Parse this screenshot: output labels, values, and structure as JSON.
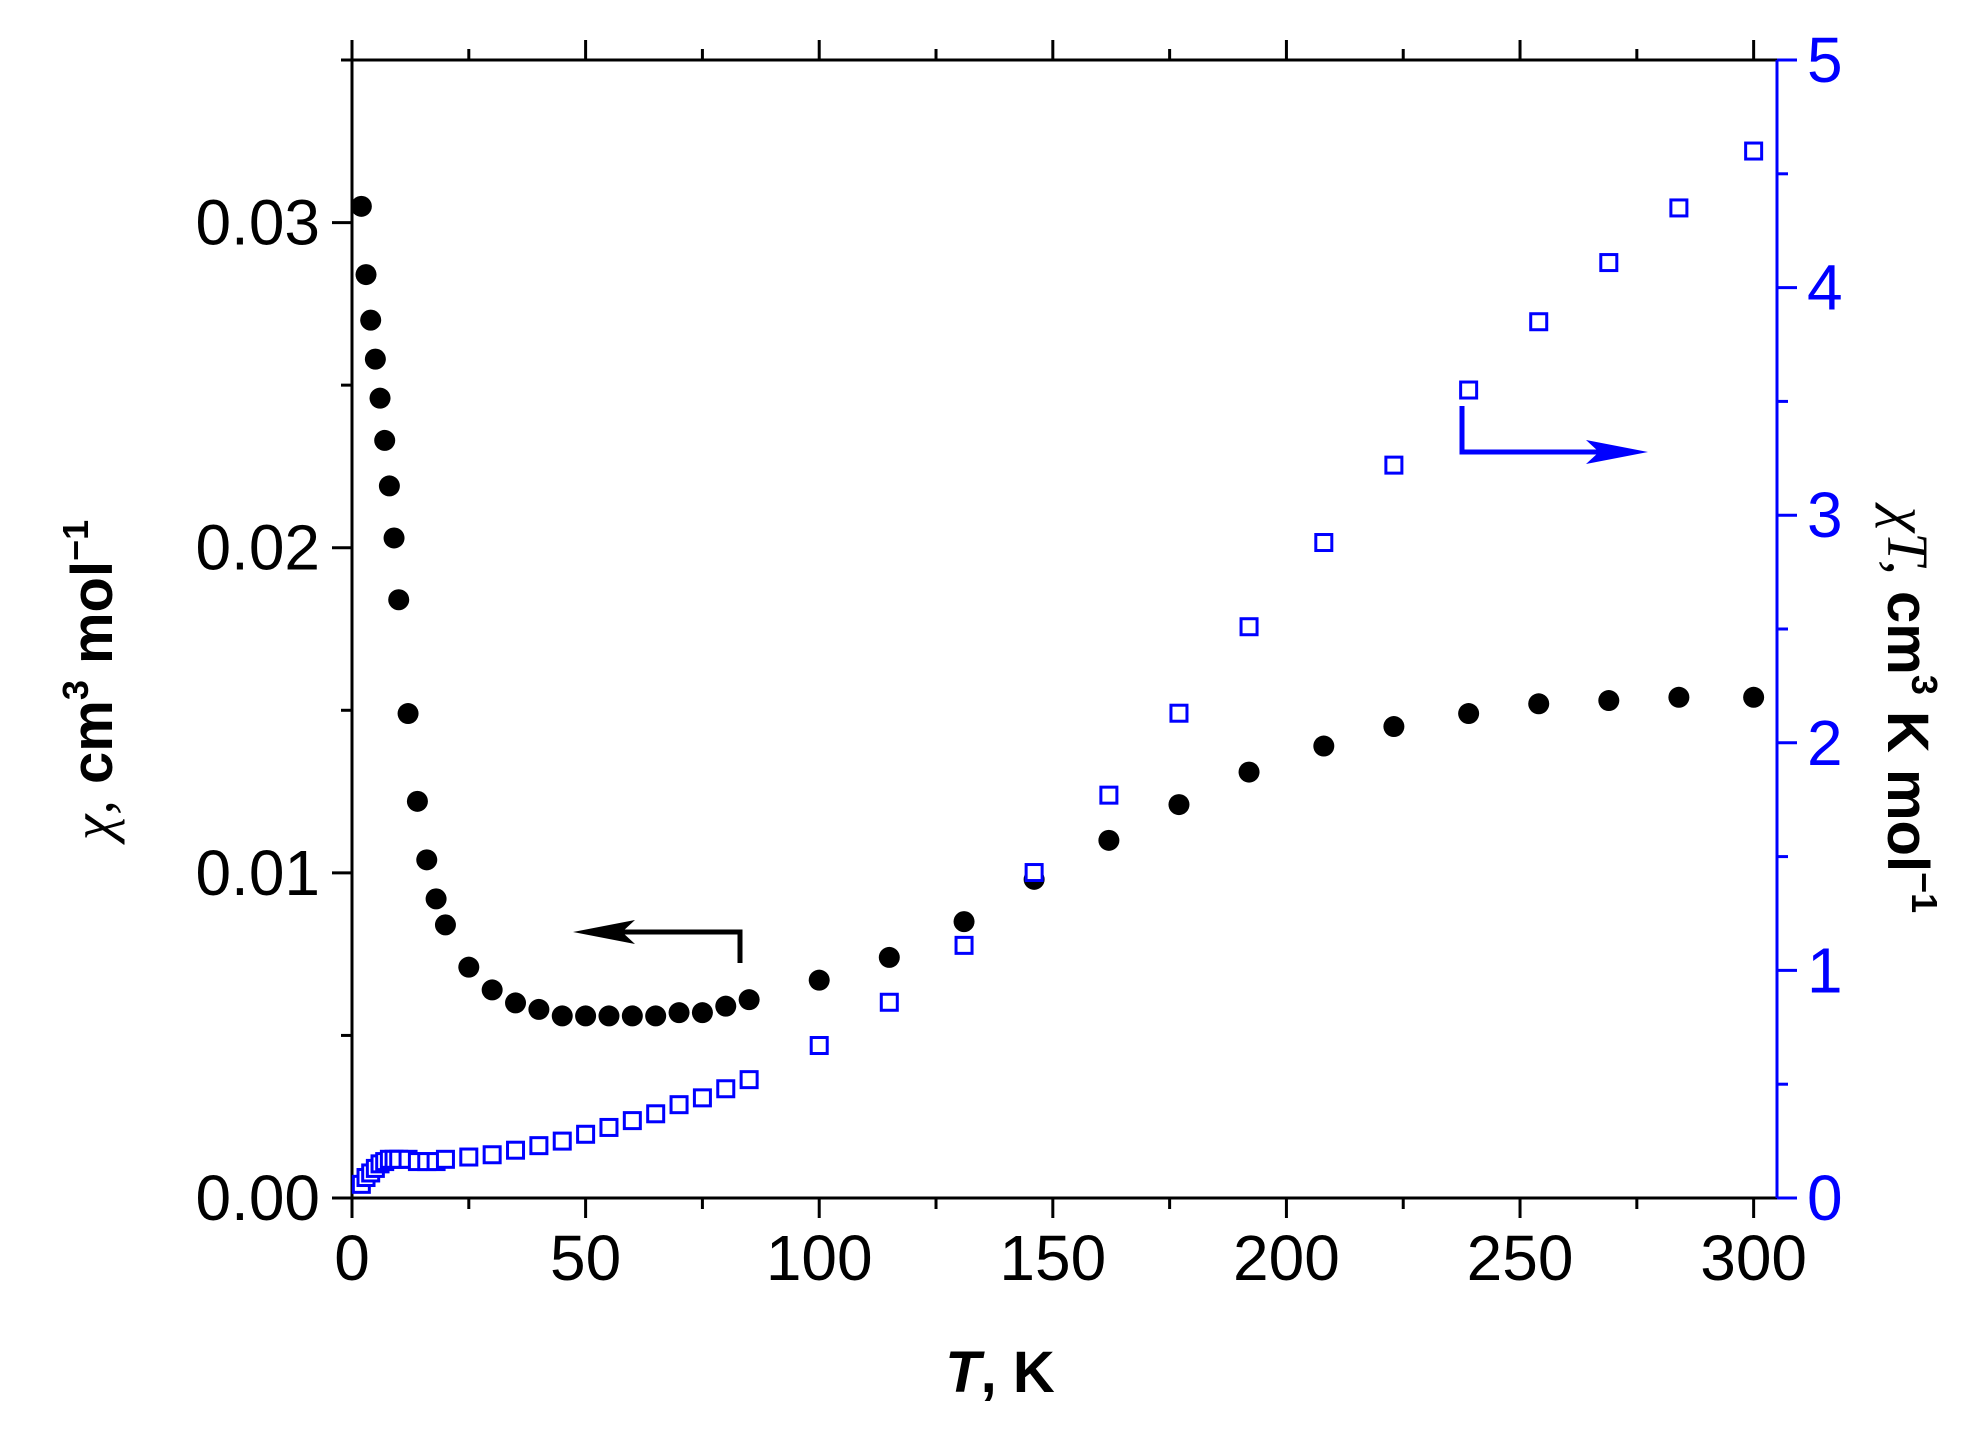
{
  "chart_data": {
    "type": "scatter",
    "title": "",
    "xlabel": "T, K",
    "xlabel_var": "T",
    "xlabel_unit": ", K",
    "ylabel_left": "χ, cm³ mol⁻¹",
    "ylabel_left_parts": {
      "var": "χ,",
      "a": " cm",
      "sup1": "3",
      "b": " mol",
      "sup2": "−1"
    },
    "ylabel_right": "χT, cm³ K mol⁻¹",
    "ylabel_right_parts": {
      "var": "χT,",
      "a": " cm",
      "sup1": "3",
      "b": " K mol",
      "sup2": "−1"
    },
    "xlim": [
      0,
      305
    ],
    "ylim_left": [
      0,
      0.035
    ],
    "ylim_right": [
      0,
      5
    ],
    "x_ticks": [
      {
        "value": 0,
        "label": "0"
      },
      {
        "value": 50,
        "label": "50"
      },
      {
        "value": 100,
        "label": "100"
      },
      {
        "value": 150,
        "label": "150"
      },
      {
        "value": 200,
        "label": "200"
      },
      {
        "value": 250,
        "label": "250"
      },
      {
        "value": 300,
        "label": "300"
      }
    ],
    "y_left_ticks": [
      {
        "value": 0,
        "label": "0.00"
      },
      {
        "value": 0.01,
        "label": "0.01"
      },
      {
        "value": 0.02,
        "label": "0.02"
      },
      {
        "value": 0.03,
        "label": "0.03"
      }
    ],
    "y_right_ticks": [
      {
        "value": 0,
        "label": "0"
      },
      {
        "value": 1,
        "label": "1"
      },
      {
        "value": 2,
        "label": "2"
      },
      {
        "value": 3,
        "label": "3"
      },
      {
        "value": 4,
        "label": "4"
      },
      {
        "value": 5,
        "label": "5"
      }
    ],
    "colors": {
      "chi": "#000000",
      "chiT": "#0000ff",
      "axis_right": "#0000ff"
    },
    "series": [
      {
        "name": "chi",
        "axis": "left",
        "marker": "filled-circle",
        "x": [
          2,
          3,
          4,
          5,
          6,
          7,
          8,
          9,
          10,
          12,
          14,
          16,
          18,
          20,
          25,
          30,
          35,
          40,
          45,
          50,
          55,
          60,
          65,
          70,
          75,
          80,
          85,
          100,
          115,
          131,
          146,
          162,
          177,
          192,
          208,
          223,
          239,
          254,
          269,
          284,
          300
        ],
        "y": [
          0.0305,
          0.0284,
          0.027,
          0.0258,
          0.0246,
          0.0233,
          0.0219,
          0.0203,
          0.0184,
          0.0149,
          0.0122,
          0.0104,
          0.0092,
          0.0084,
          0.0071,
          0.0064,
          0.006,
          0.0058,
          0.0056,
          0.0056,
          0.0056,
          0.0056,
          0.0056,
          0.0057,
          0.0057,
          0.0059,
          0.0061,
          0.0067,
          0.0074,
          0.0085,
          0.0098,
          0.011,
          0.0121,
          0.0131,
          0.0139,
          0.0145,
          0.0149,
          0.0152,
          0.0153,
          0.0154,
          0.0154
        ]
      },
      {
        "name": "chiT",
        "axis": "right",
        "marker": "open-square",
        "x": [
          2,
          3,
          4,
          5,
          6,
          7,
          8,
          9,
          10,
          12,
          14,
          16,
          18,
          20,
          25,
          30,
          35,
          40,
          45,
          50,
          55,
          60,
          65,
          70,
          75,
          80,
          85,
          100,
          115,
          131,
          146,
          162,
          177,
          192,
          208,
          223,
          239,
          254,
          269,
          284,
          300
        ],
        "y": [
          0.06,
          0.09,
          0.11,
          0.13,
          0.15,
          0.16,
          0.17,
          0.17,
          0.17,
          0.17,
          0.16,
          0.16,
          0.16,
          0.17,
          0.18,
          0.19,
          0.21,
          0.23,
          0.25,
          0.28,
          0.31,
          0.34,
          0.37,
          0.41,
          0.44,
          0.48,
          0.52,
          0.67,
          0.86,
          1.11,
          1.43,
          1.77,
          2.13,
          2.51,
          2.88,
          3.22,
          3.55,
          3.85,
          4.11,
          4.35,
          4.6
        ]
      }
    ],
    "annotations": [
      {
        "type": "arrow",
        "points_to": "left axis",
        "near_series": "chi"
      },
      {
        "type": "arrow",
        "points_to": "right axis",
        "near_series": "chiT"
      }
    ]
  }
}
